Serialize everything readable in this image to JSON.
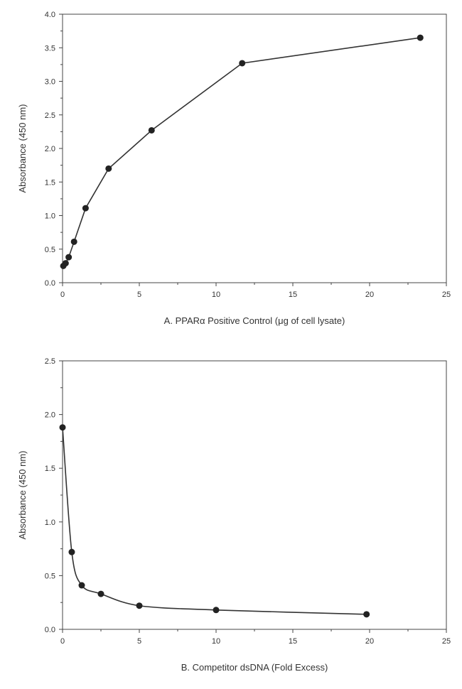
{
  "chart_data": [
    {
      "type": "line",
      "xlabel": "A. PPARα Positive Control (μg of cell lysate)",
      "ylabel": "Absorbance (450 nm)",
      "xlim": [
        0,
        25
      ],
      "ylim": [
        0,
        4.0
      ],
      "xticks": [
        "0",
        "5",
        "10",
        "15",
        "20",
        "25"
      ],
      "yticks": [
        "0.0",
        "0.5",
        "1.0",
        "1.5",
        "2.0",
        "2.5",
        "3.0",
        "3.5",
        "4.0"
      ],
      "curve": "straight",
      "grid": false,
      "series": [
        {
          "x": [
            0.05,
            0.2,
            0.4,
            0.75,
            1.5,
            3.0,
            5.8,
            11.7,
            23.3
          ],
          "y": [
            0.25,
            0.29,
            0.38,
            0.61,
            1.11,
            1.7,
            2.27,
            3.27,
            3.65
          ],
          "color": "#333333"
        }
      ]
    },
    {
      "type": "line",
      "xlabel": "B. Competitor dsDNA (Fold Excess)",
      "ylabel": "Absorbance (450 nm)",
      "xlim": [
        0,
        25
      ],
      "ylim": [
        0,
        2.5
      ],
      "xticks": [
        "0",
        "5",
        "10",
        "15",
        "20",
        "25"
      ],
      "yticks": [
        "0.0",
        "0.5",
        "1.0",
        "1.5",
        "2.0",
        "2.5"
      ],
      "curve": "smooth",
      "grid": false,
      "series": [
        {
          "x": [
            0.0,
            0.6,
            1.25,
            2.5,
            5.0,
            10.0,
            19.8
          ],
          "y": [
            1.88,
            0.72,
            0.41,
            0.33,
            0.22,
            0.18,
            0.14
          ],
          "color": "#333333"
        }
      ]
    }
  ]
}
